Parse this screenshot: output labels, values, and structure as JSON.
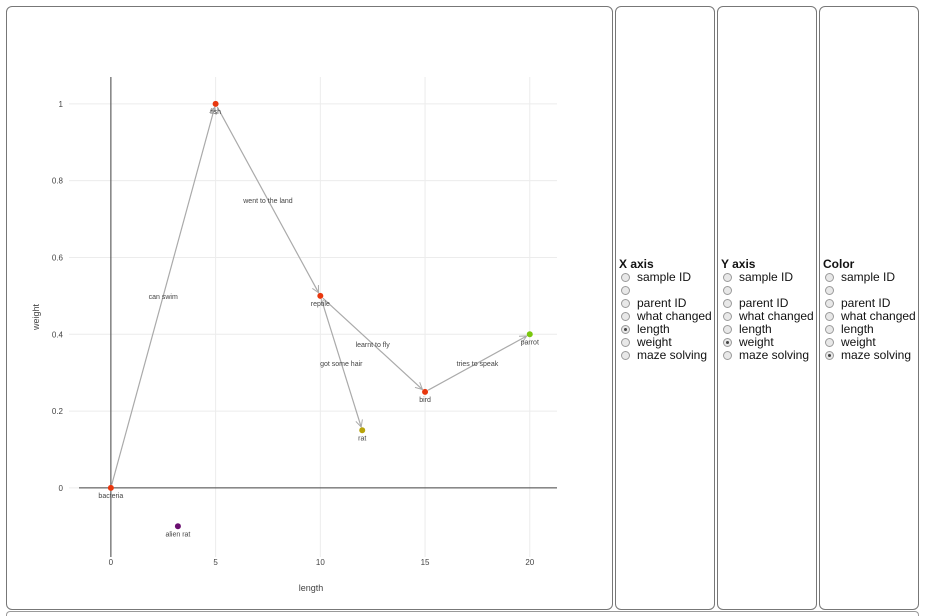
{
  "chart_data": {
    "type": "scatter",
    "xlabel": "length",
    "ylabel": "weight",
    "xlim": [
      -2,
      21.3
    ],
    "ylim": [
      -0.18,
      1.07
    ],
    "x_ticks": [
      0,
      5,
      10,
      15,
      20
    ],
    "y_ticks": [
      0,
      0.2,
      0.4,
      0.6,
      0.8,
      1
    ],
    "y_tick_labels": [
      "0",
      "0.2",
      "0.4",
      "0.6",
      "0.8",
      "1"
    ],
    "grid": true,
    "points": [
      {
        "label": "bacteria",
        "x": 0,
        "y": 0,
        "color": "#e8370e"
      },
      {
        "label": "fish",
        "x": 5,
        "y": 1,
        "color": "#e8370e"
      },
      {
        "label": "reptile",
        "x": 10,
        "y": 0.5,
        "color": "#e8370e"
      },
      {
        "label": "bird",
        "x": 15,
        "y": 0.25,
        "color": "#e8370e"
      },
      {
        "label": "rat",
        "x": 12,
        "y": 0.15,
        "color": "#b8a40c"
      },
      {
        "label": "parrot",
        "x": 20,
        "y": 0.4,
        "color": "#7ac70e"
      },
      {
        "label": "alien rat",
        "x": 3.2,
        "y": -0.1,
        "color": "#6a0f70"
      }
    ],
    "edges": [
      {
        "from": 0,
        "to": 1,
        "label": "can swim"
      },
      {
        "from": 1,
        "to": 2,
        "label": "went to the land"
      },
      {
        "from": 2,
        "to": 3,
        "label": "learnt to fly"
      },
      {
        "from": 2,
        "to": 4,
        "label": "got some hair"
      },
      {
        "from": 3,
        "to": 5,
        "label": "tries to speak"
      }
    ]
  },
  "controls": [
    {
      "title": "X axis",
      "options": [
        "sample ID",
        "",
        "parent ID",
        "what changed",
        "length",
        "weight",
        "maze solving"
      ],
      "selected": 4
    },
    {
      "title": "Y axis",
      "options": [
        "sample ID",
        "",
        "parent ID",
        "what changed",
        "length",
        "weight",
        "maze solving"
      ],
      "selected": 5
    },
    {
      "title": "Color",
      "options": [
        "sample ID",
        "",
        "parent ID",
        "what changed",
        "length",
        "weight",
        "maze solving"
      ],
      "selected": 6
    }
  ]
}
